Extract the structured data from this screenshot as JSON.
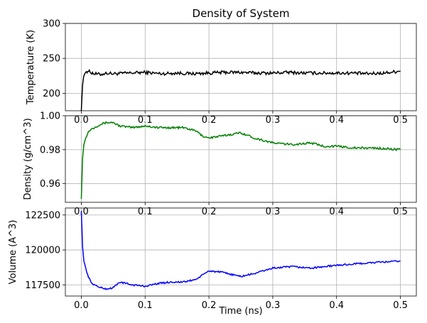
{
  "chart_data": [
    {
      "type": "line",
      "title": "Density of System",
      "xlabel": "",
      "ylabel": "Temperature (K)",
      "xlim": [
        -0.025,
        0.525
      ],
      "ylim": [
        175,
        300
      ],
      "xticks": [
        0.0,
        0.1,
        0.2,
        0.3,
        0.4,
        0.5
      ],
      "xtick_labels": [
        "0.0",
        "0.1",
        "0.2",
        "0.3",
        "0.4",
        "0.5"
      ],
      "yticks": [
        200,
        250,
        300
      ],
      "ytick_labels": [
        "200",
        "250",
        "300"
      ],
      "grid": true,
      "series": [
        {
          "color": "#000000",
          "x": [
            0.0,
            0.001,
            0.002,
            0.003,
            0.004,
            0.006,
            0.008,
            0.01,
            0.015,
            0.02,
            0.03,
            0.04,
            0.05,
            0.075,
            0.1,
            0.125,
            0.15,
            0.175,
            0.2,
            0.225,
            0.25,
            0.275,
            0.3,
            0.325,
            0.35,
            0.375,
            0.4,
            0.425,
            0.45,
            0.475,
            0.5
          ],
          "y": [
            175,
            195,
            212,
            220,
            225,
            229,
            231,
            232,
            230,
            228,
            227,
            229,
            228,
            229,
            230,
            228,
            229,
            228,
            229,
            230,
            230,
            229,
            229,
            230,
            229,
            229,
            229,
            229,
            228,
            229,
            232
          ]
        }
      ]
    },
    {
      "type": "line",
      "xlabel": "",
      "ylabel": "Density (g/cm^3)",
      "xlim": [
        -0.025,
        0.525
      ],
      "ylim": [
        0.949,
        1.0
      ],
      "xticks": [
        0.0,
        0.1,
        0.2,
        0.3,
        0.4,
        0.5
      ],
      "xtick_labels": [
        "0.0",
        "0.1",
        "0.2",
        "0.3",
        "0.4",
        "0.5"
      ],
      "yticks": [
        0.96,
        0.98,
        1.0
      ],
      "ytick_labels": [
        "0.96",
        "0.98",
        "1.00"
      ],
      "grid": true,
      "series": [
        {
          "color": "#008000",
          "x": [
            0.0,
            0.002,
            0.004,
            0.007,
            0.01,
            0.015,
            0.02,
            0.03,
            0.04,
            0.05,
            0.06,
            0.08,
            0.1,
            0.12,
            0.14,
            0.16,
            0.18,
            0.19,
            0.2,
            0.22,
            0.25,
            0.27,
            0.3,
            0.33,
            0.36,
            0.38,
            0.4,
            0.43,
            0.46,
            0.5
          ],
          "y": [
            0.951,
            0.975,
            0.983,
            0.987,
            0.99,
            0.992,
            0.993,
            0.995,
            0.996,
            0.996,
            0.994,
            0.993,
            0.994,
            0.993,
            0.993,
            0.993,
            0.991,
            0.988,
            0.987,
            0.988,
            0.99,
            0.987,
            0.984,
            0.983,
            0.984,
            0.982,
            0.982,
            0.981,
            0.981,
            0.98
          ]
        }
      ]
    },
    {
      "type": "line",
      "xlabel": "Time (ns)",
      "ylabel": "Volume (A^3)",
      "xlim": [
        -0.025,
        0.525
      ],
      "ylim": [
        116700,
        123000
      ],
      "xticks": [
        0.0,
        0.1,
        0.2,
        0.3,
        0.4,
        0.5
      ],
      "xtick_labels": [
        "0.0",
        "0.1",
        "0.2",
        "0.3",
        "0.4",
        "0.5"
      ],
      "yticks": [
        117500,
        120000,
        122500
      ],
      "ytick_labels": [
        "117500",
        "120000",
        "122500"
      ],
      "grid": true,
      "series": [
        {
          "color": "#0000ff",
          "x": [
            0.0,
            0.002,
            0.004,
            0.007,
            0.01,
            0.015,
            0.02,
            0.03,
            0.04,
            0.05,
            0.06,
            0.08,
            0.1,
            0.12,
            0.14,
            0.16,
            0.18,
            0.19,
            0.2,
            0.22,
            0.25,
            0.27,
            0.3,
            0.33,
            0.36,
            0.38,
            0.4,
            0.43,
            0.46,
            0.5
          ],
          "y": [
            122800,
            120200,
            119200,
            118700,
            118200,
            117700,
            117500,
            117300,
            117200,
            117300,
            117700,
            117500,
            117400,
            117600,
            117700,
            117700,
            117900,
            118200,
            118500,
            118400,
            118100,
            118300,
            118700,
            118800,
            118700,
            118800,
            118900,
            119000,
            119100,
            119200
          ]
        }
      ]
    }
  ]
}
